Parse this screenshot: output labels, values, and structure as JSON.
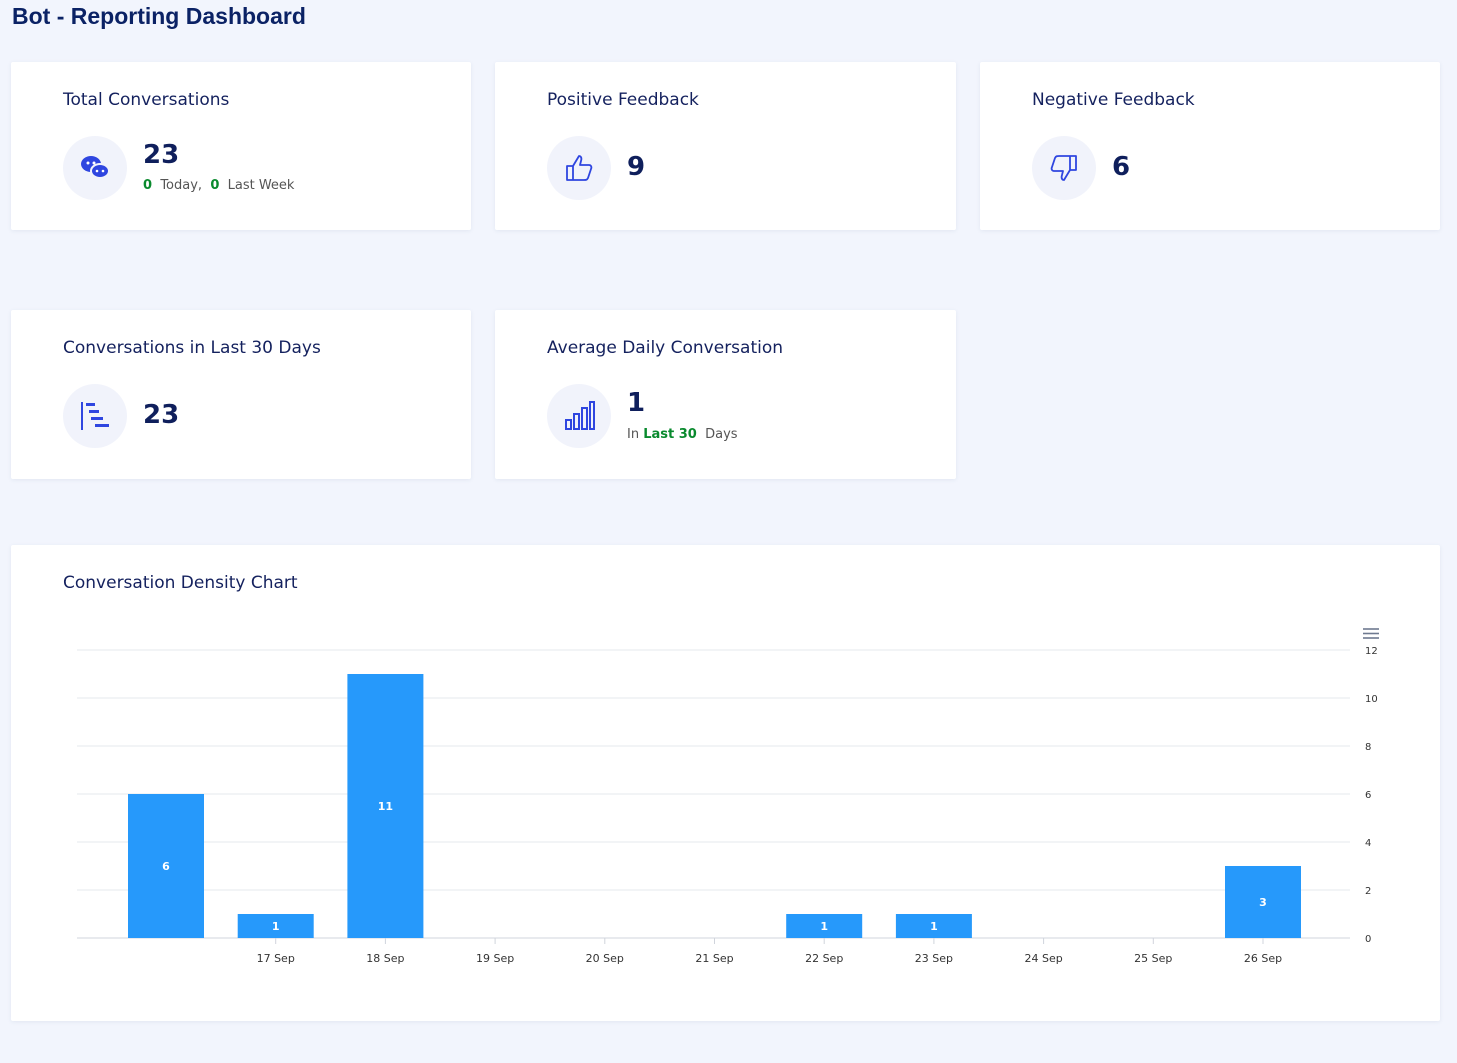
{
  "header": {
    "title": "Bot - Reporting Dashboard"
  },
  "cards": [
    {
      "title": "Total Conversations",
      "value": 23,
      "today": 0,
      "today_label": "Today,",
      "last_week": 0,
      "last_week_label": "Last Week"
    },
    {
      "title": "Positive Feedback",
      "value": 9
    },
    {
      "title": "Negative Feedback",
      "value": 6
    },
    {
      "title": "Conversations in Last 30 Days",
      "value": 23
    },
    {
      "title": "Average Daily Conversation",
      "value": 1,
      "prefix": "In",
      "period": "Last 30",
      "suffix": "Days"
    }
  ],
  "chart_data": {
    "type": "bar",
    "title": "Conversation Density Chart",
    "categories": [
      null,
      "17 Sep",
      "18 Sep",
      "19 Sep",
      "20 Sep",
      "21 Sep",
      "22 Sep",
      "23 Sep",
      "24 Sep",
      "25 Sep",
      "26 Sep"
    ],
    "values": [
      6,
      1,
      11,
      0,
      0,
      0,
      1,
      1,
      0,
      0,
      3
    ],
    "color": "#2699fb",
    "ylim": [
      0,
      12
    ],
    "yticks": [
      0,
      2,
      4,
      6,
      8,
      10,
      12
    ],
    "grid": true,
    "y_axis_side": "right"
  }
}
